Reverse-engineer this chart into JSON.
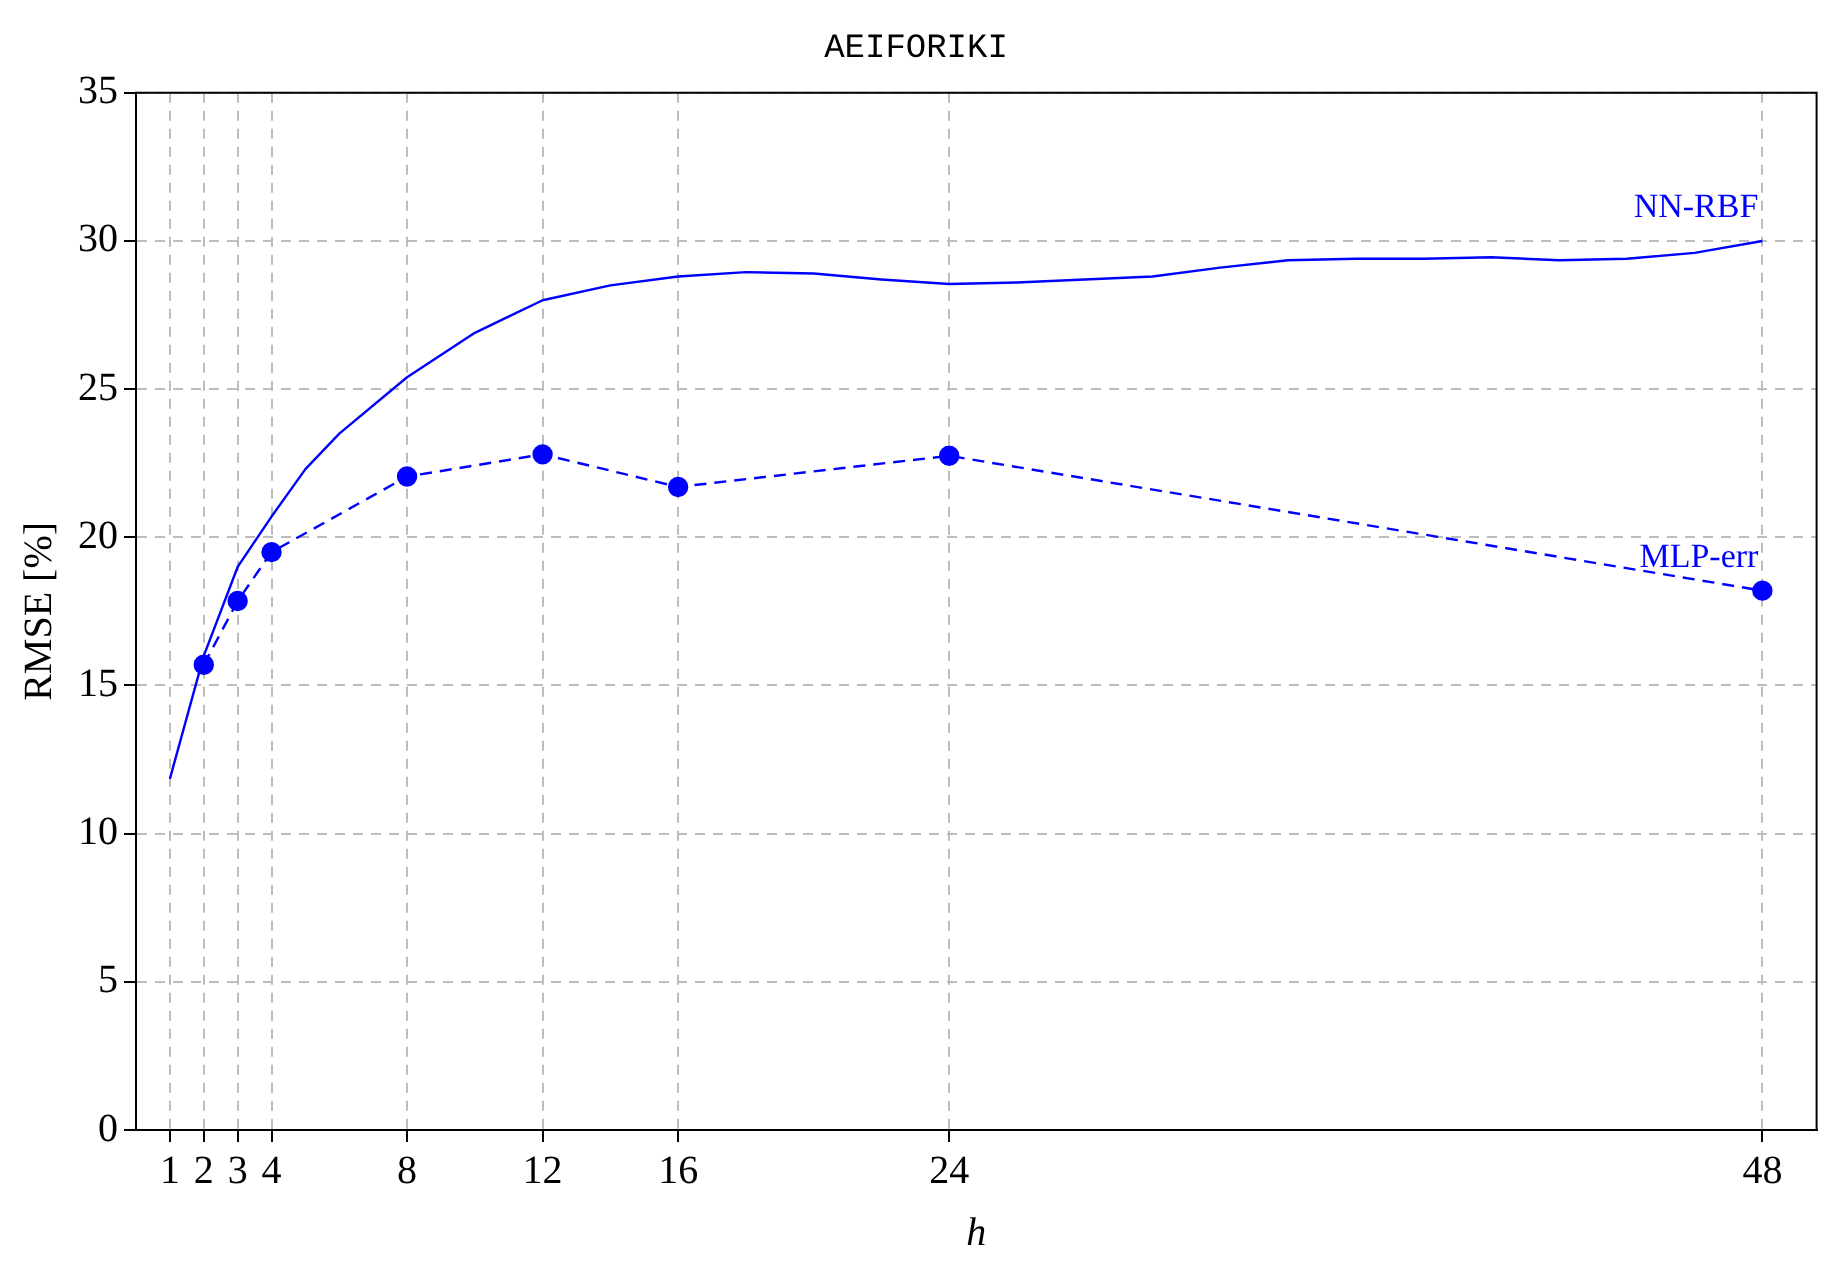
{
  "chart_data": {
    "type": "line",
    "title": "AEIFORIKI",
    "xlabel": "h",
    "ylabel": "RMSE [%]",
    "xlim": [
      0,
      49.6
    ],
    "xticks": [
      1,
      2,
      3,
      4,
      8,
      12,
      16,
      24,
      48
    ],
    "ylim": [
      0,
      35
    ],
    "yticks": [
      0,
      5,
      10,
      15,
      20,
      25,
      30,
      35
    ],
    "grid": true,
    "legend": false,
    "series": [
      {
        "name": "NN-RBF",
        "color": "#0000ff",
        "marker": "none",
        "line_style": "solid",
        "x": [
          1,
          2,
          3,
          4,
          5,
          6,
          8,
          10,
          12,
          14,
          16,
          18,
          20,
          22,
          24,
          26,
          28,
          30,
          32,
          34,
          36,
          38,
          40,
          42,
          44,
          46,
          48
        ],
        "values": [
          11.85,
          16.0,
          19.0,
          20.7,
          22.3,
          23.5,
          25.4,
          26.9,
          28.0,
          28.5,
          28.8,
          28.95,
          28.9,
          28.7,
          28.55,
          28.6,
          28.7,
          28.8,
          29.1,
          29.35,
          29.4,
          29.4,
          29.45,
          29.35,
          29.4,
          29.6,
          30.0
        ]
      },
      {
        "name": "MLP-err",
        "color": "#0000ff",
        "marker": "circle",
        "line_style": "dashed",
        "x": [
          2,
          3,
          4,
          8,
          12,
          16,
          24,
          48
        ],
        "values": [
          15.7,
          17.85,
          19.5,
          22.05,
          22.8,
          21.7,
          22.75,
          18.2
        ]
      }
    ]
  }
}
